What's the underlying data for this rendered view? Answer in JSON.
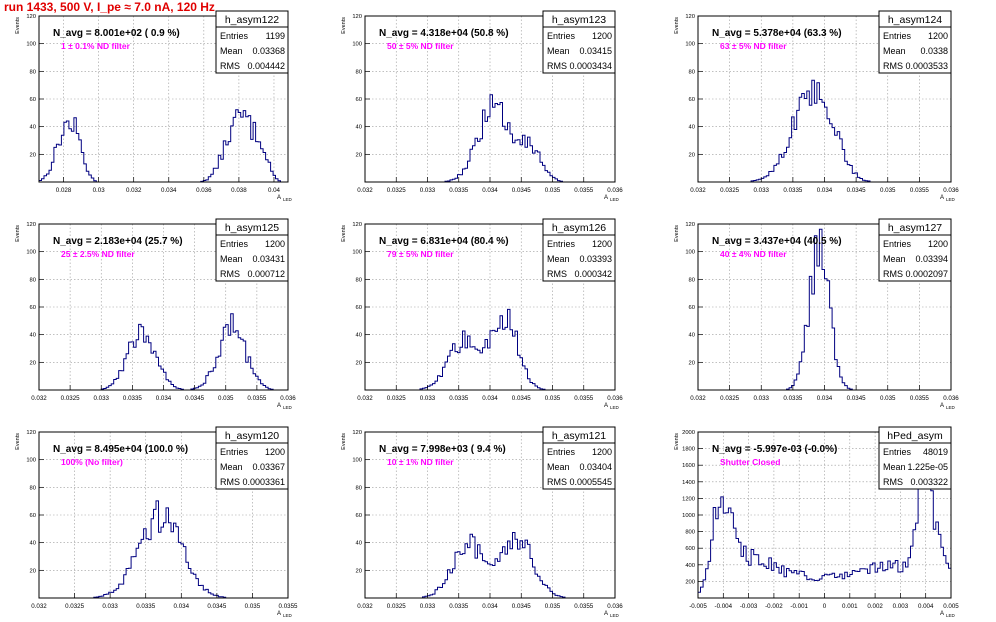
{
  "run_title": "run 1433,   500 V, I_pe ≈ 7.0 nA, 120 Hz",
  "axis_text": {
    "ylabel": "Events",
    "xlabel": "A",
    "xlabel_sub": "LED"
  },
  "colors": {
    "hist": "#000080",
    "navg": "#000000",
    "filter": "#ff00ff",
    "run_title": "#e00000",
    "grid": "#9a9a9a"
  },
  "chart_data": [
    {
      "type": "bar",
      "hist_name": "h_asym122",
      "navg": "N_avg = 8.001e+02 ( 0.9 %)",
      "filter_label": "1 ± 0.1% ND filter",
      "stats": {
        "entries": "1199",
        "mean": "0.03368",
        "rms": "0.004442"
      },
      "xlim": [
        0.0266,
        0.0408
      ],
      "ylim": [
        0,
        120
      ],
      "xticks": [
        0.028,
        0.03,
        0.032,
        0.034,
        0.036,
        0.038,
        0.04
      ],
      "xticklabels": [
        "0.028",
        "0.03",
        "0.032",
        "0.034",
        "0.036",
        "0.038",
        "0.04"
      ],
      "yticks": [
        20,
        40,
        60,
        80,
        100,
        120
      ],
      "yticklabels": [
        "20",
        "40",
        "60",
        "80",
        "100",
        "120"
      ],
      "peaks": [
        [
          0.0281,
          36,
          0.00055
        ],
        [
          0.0288,
          18,
          0.0004
        ],
        [
          0.0374,
          22,
          0.00055
        ],
        [
          0.0383,
          40,
          0.00055
        ],
        [
          0.0393,
          22,
          0.0004
        ]
      ]
    },
    {
      "type": "bar",
      "hist_name": "h_asym123",
      "navg": "N_avg = 4.318e+04 (50.8 %)",
      "filter_label": "50 ± 5% ND filter",
      "stats": {
        "entries": "1200",
        "mean": "0.03415",
        "rms": "0.0003434"
      },
      "xlim": [
        0.032,
        0.036
      ],
      "ylim": [
        0,
        120
      ],
      "xticks": [
        0.032,
        0.0325,
        0.033,
        0.0335,
        0.034,
        0.0345,
        0.035,
        0.0355,
        0.036
      ],
      "xticklabels": [
        "0.032",
        "0.0325",
        "0.033",
        "0.0335",
        "0.034",
        "0.0345",
        "0.035",
        "0.0355",
        "0.036"
      ],
      "yticks": [
        20,
        40,
        60,
        80,
        100,
        120
      ],
      "yticklabels": [
        "20",
        "40",
        "60",
        "80",
        "100",
        "120"
      ],
      "peaks": [
        [
          0.03405,
          52,
          0.00025
        ],
        [
          0.0346,
          26,
          0.0002
        ]
      ]
    },
    {
      "type": "bar",
      "hist_name": "h_asym124",
      "navg": "N_avg = 5.378e+04 (63.3 %)",
      "filter_label": "63 ± 5% ND filter",
      "stats": {
        "entries": "1200",
        "mean": "0.0338",
        "rms": "0.0003533"
      },
      "xlim": [
        0.032,
        0.036
      ],
      "ylim": [
        0,
        120
      ],
      "xticks": [
        0.032,
        0.0325,
        0.033,
        0.0335,
        0.034,
        0.0345,
        0.035,
        0.0355,
        0.036
      ],
      "xticklabels": [
        "0.032",
        "0.0325",
        "0.033",
        "0.0335",
        "0.034",
        "0.0345",
        "0.035",
        "0.0355",
        "0.036"
      ],
      "yticks": [
        20,
        40,
        60,
        80,
        100,
        120
      ],
      "yticklabels": [
        "20",
        "40",
        "60",
        "80",
        "100",
        "120"
      ],
      "peaks": [
        [
          0.03375,
          55,
          0.0003
        ],
        [
          0.0341,
          22,
          0.0002
        ]
      ]
    },
    {
      "type": "bar",
      "hist_name": "h_asym125",
      "navg": "N_avg = 2.183e+04 (25.7 %)",
      "filter_label": "25 ± 2.5% ND filter",
      "stats": {
        "entries": "1200",
        "mean": "0.03431",
        "rms": "0.000712"
      },
      "xlim": [
        0.032,
        0.036
      ],
      "ylim": [
        0,
        120
      ],
      "xticks": [
        0.032,
        0.0325,
        0.033,
        0.0335,
        0.034,
        0.0345,
        0.035,
        0.0355,
        0.036
      ],
      "xticklabels": [
        "0.032",
        "0.0325",
        "0.033",
        "0.0335",
        "0.034",
        "0.0345",
        "0.035",
        "0.0355",
        "0.036"
      ],
      "yticks": [
        20,
        40,
        60,
        80,
        100,
        120
      ],
      "yticklabels": [
        "20",
        "40",
        "60",
        "80",
        "100",
        "120"
      ],
      "peaks": [
        [
          0.03365,
          44,
          0.00022
        ],
        [
          0.0351,
          46,
          0.00022
        ]
      ]
    },
    {
      "type": "bar",
      "hist_name": "h_asym126",
      "navg": "N_avg = 6.831e+04 (80.4 %)",
      "filter_label": "79 ± 5% ND filter",
      "stats": {
        "entries": "1200",
        "mean": "0.03393",
        "rms": "0.000342"
      },
      "xlim": [
        0.032,
        0.036
      ],
      "ylim": [
        0,
        120
      ],
      "xticks": [
        0.032,
        0.0325,
        0.033,
        0.0335,
        0.034,
        0.0345,
        0.035,
        0.0355,
        0.036
      ],
      "xticklabels": [
        "0.032",
        "0.0325",
        "0.033",
        "0.0335",
        "0.034",
        "0.0345",
        "0.035",
        "0.0355",
        "0.036"
      ],
      "yticks": [
        20,
        40,
        60,
        80,
        100,
        120
      ],
      "yticklabels": [
        "20",
        "40",
        "60",
        "80",
        "100",
        "120"
      ],
      "peaks": [
        [
          0.0336,
          36,
          0.00025
        ],
        [
          0.03425,
          54,
          0.0002
        ]
      ]
    },
    {
      "type": "bar",
      "hist_name": "h_asym127",
      "navg": "N_avg = 3.437e+04 (40.5 %)",
      "filter_label": "40 ± 4% ND filter",
      "stats": {
        "entries": "1200",
        "mean": "0.03394",
        "rms": "0.0002097"
      },
      "xlim": [
        0.032,
        0.036
      ],
      "ylim": [
        0,
        120
      ],
      "xticks": [
        0.032,
        0.0325,
        0.033,
        0.0335,
        0.034,
        0.0345,
        0.035,
        0.0355,
        0.036
      ],
      "xticklabels": [
        "0.032",
        "0.0325",
        "0.033",
        "0.0335",
        "0.034",
        "0.0345",
        "0.035",
        "0.0355",
        "0.036"
      ],
      "yticks": [
        20,
        40,
        60,
        80,
        100,
        120
      ],
      "yticklabels": [
        "20",
        "40",
        "60",
        "80",
        "100",
        "120"
      ],
      "peaks": [
        [
          0.03392,
          100,
          0.00016
        ]
      ]
    },
    {
      "type": "bar",
      "hist_name": "h_asym120",
      "navg": "N_avg = 8.495e+04 (100.0 %)",
      "filter_label": "100% (No filter)",
      "stats": {
        "entries": "1200",
        "mean": "0.03367",
        "rms": "0.0003361"
      },
      "xlim": [
        0.032,
        0.0355
      ],
      "ylim": [
        0,
        120
      ],
      "xticks": [
        0.032,
        0.0325,
        0.033,
        0.0335,
        0.034,
        0.0345,
        0.035,
        0.0355
      ],
      "xticklabels": [
        "0.032",
        "0.0325",
        "0.033",
        "0.0335",
        "0.034",
        "0.0345",
        "0.035",
        "0.0355"
      ],
      "yticks": [
        20,
        40,
        60,
        80,
        100,
        120
      ],
      "yticklabels": [
        "20",
        "40",
        "60",
        "80",
        "100",
        "120"
      ],
      "peaks": [
        [
          0.0337,
          60,
          0.0003
        ]
      ]
    },
    {
      "type": "bar",
      "hist_name": "h_asym121",
      "navg": "N_avg = 7.998e+03 ( 9.4 %)",
      "filter_label": "10 ± 1% ND filter",
      "stats": {
        "entries": "1200",
        "mean": "0.03404",
        "rms": "0.0005545"
      },
      "xlim": [
        0.032,
        0.036
      ],
      "ylim": [
        0,
        120
      ],
      "xticks": [
        0.032,
        0.0325,
        0.033,
        0.0335,
        0.034,
        0.0345,
        0.035,
        0.0355,
        0.036
      ],
      "xticklabels": [
        "0.032",
        "0.0325",
        "0.033",
        "0.0335",
        "0.034",
        "0.0345",
        "0.035",
        "0.0355",
        "0.036"
      ],
      "yticks": [
        20,
        40,
        60,
        80,
        100,
        120
      ],
      "yticklabels": [
        "20",
        "40",
        "60",
        "80",
        "100",
        "120"
      ],
      "peaks": [
        [
          0.03365,
          40,
          0.00025
        ],
        [
          0.03445,
          42,
          0.00025
        ]
      ]
    },
    {
      "type": "bar",
      "hist_name": "hPed_asym",
      "navg": "N_avg = -5.997e-03 (-0.0%)",
      "filter_label": "Shutter Closed",
      "stats": {
        "entries": "48019",
        "mean": "1.225e-05",
        "rms": "0.003322"
      },
      "xlim": [
        -0.005,
        0.005
      ],
      "ylim": [
        0,
        2000
      ],
      "xticks": [
        -0.005,
        -0.004,
        -0.003,
        -0.002,
        -0.001,
        0,
        0.001,
        0.002,
        0.003,
        0.004,
        0.005
      ],
      "xticklabels": [
        "-0.005",
        "-0.004",
        "-0.003",
        "-0.002",
        "-0.001",
        "0",
        "0.001",
        "0.002",
        "0.003",
        "0.004",
        "0.005"
      ],
      "yticks": [
        200,
        400,
        600,
        800,
        1000,
        1200,
        1400,
        1600,
        1800,
        2000
      ],
      "yticklabels": [
        "200",
        "400",
        "600",
        "800",
        "1000",
        "1200",
        "1400",
        "1600",
        "1800",
        "2000"
      ],
      "peaks": [
        [
          -0.00405,
          1150,
          0.00038
        ],
        [
          0.0039,
          1300,
          0.00028
        ],
        [
          0.0045,
          550,
          0.0004
        ],
        [
          -0.0028,
          250,
          0.0008
        ],
        [
          0.0025,
          150,
          0.0008
        ]
      ],
      "baseline": 250
    }
  ]
}
